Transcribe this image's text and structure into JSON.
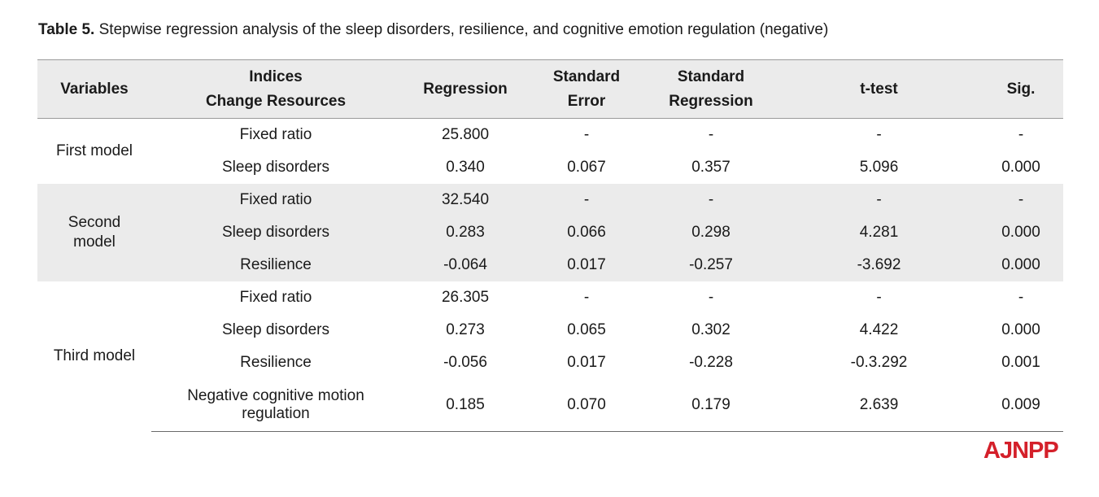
{
  "caption": {
    "label": "Table 5.",
    "text": "Stepwise regression analysis of the sleep disorders, resilience, and cognitive emotion regulation (negative)"
  },
  "headers": {
    "variables": "Variables",
    "indices_line1": "Indices",
    "indices_line2": "Change Resources",
    "regression": "Regression",
    "std_error_line1": "Standard",
    "std_error_line2": "Error",
    "std_regression_line1": "Standard",
    "std_regression_line2": "Regression",
    "ttest": "t-test",
    "sig": "Sig."
  },
  "models": {
    "first": "First model",
    "second_line1": "Second",
    "second_line2": "model",
    "third": "Third model"
  },
  "rows": [
    {
      "index": "Fixed ratio",
      "regression": "25.800",
      "se": "-",
      "sr": "-",
      "t": "-",
      "sig": "-"
    },
    {
      "index": "Sleep disorders",
      "regression": "0.340",
      "se": "0.067",
      "sr": "0.357",
      "t": "5.096",
      "sig": "0.000"
    },
    {
      "index": "Fixed ratio",
      "regression": "32.540",
      "se": "-",
      "sr": "-",
      "t": "-",
      "sig": "-"
    },
    {
      "index": "Sleep disorders",
      "regression": "0.283",
      "se": "0.066",
      "sr": "0.298",
      "t": "4.281",
      "sig": "0.000"
    },
    {
      "index": "Resilience",
      "regression": "-0.064",
      "se": "0.017",
      "sr": "-0.257",
      "t": "-3.692",
      "sig": "0.000"
    },
    {
      "index": "Fixed ratio",
      "regression": "26.305",
      "se": "-",
      "sr": "-",
      "t": "-",
      "sig": "-"
    },
    {
      "index": "Sleep disorders",
      "regression": "0.273",
      "se": "0.065",
      "sr": "0.302",
      "t": "4.422",
      "sig": "0.000"
    },
    {
      "index": "Resilience",
      "regression": "-0.056",
      "se": "0.017",
      "sr": "-0.228",
      "t": "-0.3.292",
      "sig": "0.001"
    },
    {
      "index_line1": "Negative cognitive motion",
      "index_line2": "regulation",
      "regression": "0.185",
      "se": "0.070",
      "sr": "0.179",
      "t": "2.639",
      "sig": "0.009"
    }
  ],
  "logo": "AJNPP",
  "colors": {
    "shade": "#ebebeb",
    "logo": "#d4202a"
  }
}
